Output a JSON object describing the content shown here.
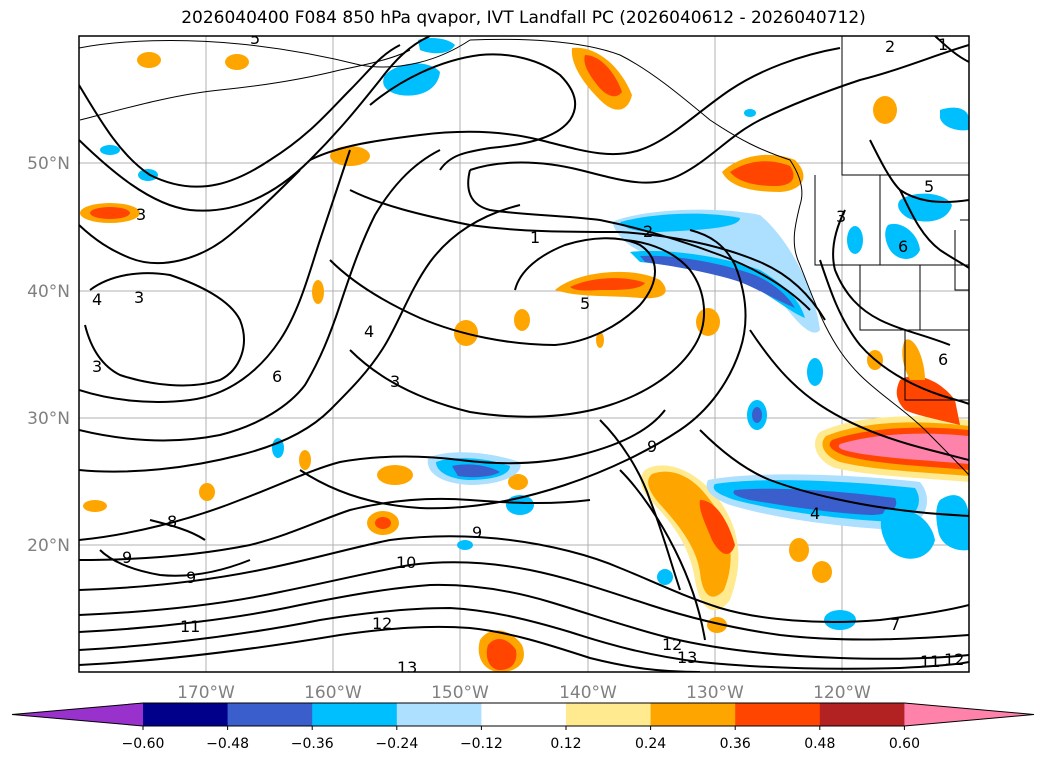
{
  "title": "2026040400 F084 850 hPa qvapor, IVT Landfall PC (2026040612 - 2026040712)",
  "lon_labels": [
    "170°W",
    "160°W",
    "150°W",
    "140°W",
    "130°W",
    "120°W"
  ],
  "lat_labels": [
    "50°N",
    "40°N",
    "30°N",
    "20°N"
  ],
  "colorbar": {
    "colors": [
      "#9932CC",
      "#00008B",
      "#3A5FCD",
      "#00BFFF",
      "#ADDFFF",
      "#FFFFFF",
      "#FFEA8F",
      "#FFA500",
      "#FF4500",
      "#B22222",
      "#FF82AB"
    ],
    "tick_labels": [
      "−0.60",
      "−0.48",
      "−0.36",
      "−0.24",
      "−0.12",
      "0.12",
      "0.24",
      "0.36",
      "0.48",
      "0.60"
    ]
  },
  "contour_labels": [
    "5",
    "2",
    "1",
    "3",
    "4",
    "3",
    "1",
    "2",
    "5",
    "3",
    "4",
    "6",
    "5",
    "6",
    "6",
    "3",
    "9",
    "8",
    "9",
    "9",
    "9",
    "10",
    "12",
    "11",
    "13",
    "12",
    "13",
    "4",
    "7",
    "11",
    "12",
    "3"
  ]
}
